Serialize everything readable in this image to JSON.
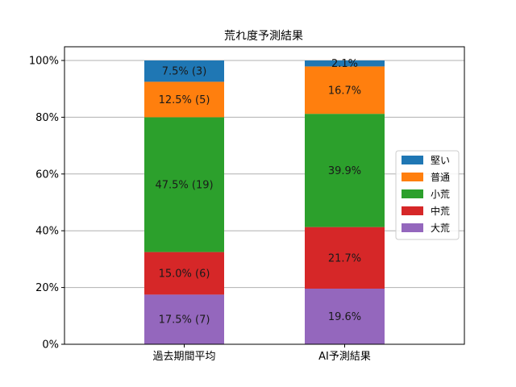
{
  "chart_data": {
    "type": "bar",
    "stacked": true,
    "title": "荒れ度予測結果",
    "categories": [
      "過去期間平均",
      "AI予測結果"
    ],
    "ylim": [
      0,
      100
    ],
    "yticks": [
      0,
      20,
      40,
      60,
      80,
      100
    ],
    "ytick_labels": [
      "0%",
      "20%",
      "40%",
      "60%",
      "80%",
      "100%"
    ],
    "grid": "horizontal",
    "legend_position": "right",
    "series": [
      {
        "name": "大荒",
        "color": "#9467bd",
        "values": [
          17.5,
          19.6
        ],
        "labels": [
          "17.5% (7)",
          "19.6%"
        ]
      },
      {
        "name": "中荒",
        "color": "#d62728",
        "values": [
          15.0,
          21.7
        ],
        "labels": [
          "15.0% (6)",
          "21.7%"
        ]
      },
      {
        "name": "小荒",
        "color": "#2ca02c",
        "values": [
          47.5,
          39.9
        ],
        "labels": [
          "47.5% (19)",
          "39.9%"
        ]
      },
      {
        "name": "普通",
        "color": "#ff7f0e",
        "values": [
          12.5,
          16.7
        ],
        "labels": [
          "12.5% (5)",
          "16.7%"
        ]
      },
      {
        "name": "堅い",
        "color": "#1f77b4",
        "values": [
          7.5,
          2.1
        ],
        "labels": [
          "7.5% (3)",
          "2.1%"
        ]
      }
    ],
    "legend_order": [
      "堅い",
      "普通",
      "小荒",
      "中荒",
      "大荒"
    ]
  }
}
